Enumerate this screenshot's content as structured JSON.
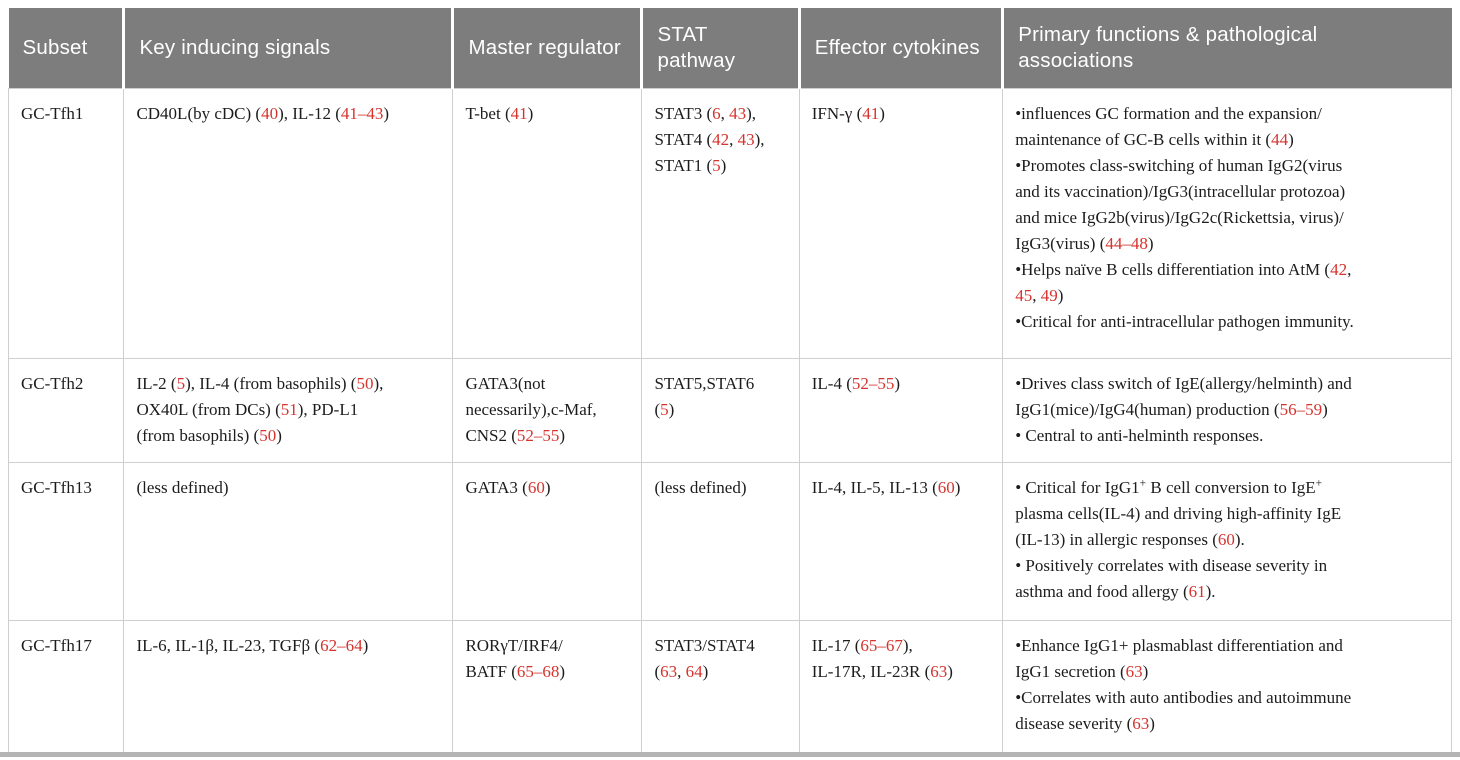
{
  "colors": {
    "citation_red": "#d5332e",
    "header_bg": "#7d7d7d",
    "border_gray": "#cfcfcf"
  },
  "table": {
    "columns": [
      "Subset",
      "Key inducing signals",
      "Master regulator",
      "STAT pathway",
      "Effector cytokines",
      "Primary functions & pathological associations"
    ],
    "column_keys": [
      "subset",
      "key-inducing-signals",
      "master-regulator",
      "stat-pathway",
      "effector-cytokines",
      "primary-functions"
    ],
    "rows": [
      {
        "cells": [
          [
            [
              "GC-Tfh1"
            ]
          ],
          [
            [
              "CD40L(by cDC) (",
              {
                "t": "40",
                "red": true
              },
              "), IL-12 (",
              {
                "t": "41–43",
                "red": true
              },
              ")"
            ]
          ],
          [
            [
              "T-bet (",
              {
                "t": "41",
                "red": true
              },
              ")"
            ]
          ],
          [
            [
              "STAT3 (",
              {
                "t": "6",
                "red": true
              },
              ", ",
              {
                "t": "43",
                "red": true
              },
              "),"
            ],
            [
              "STAT4 (",
              {
                "t": "42",
                "red": true
              },
              ", ",
              {
                "t": "43",
                "red": true
              },
              "),"
            ],
            [
              "STAT1 (",
              {
                "t": "5",
                "red": true
              },
              ")"
            ]
          ],
          [
            [
              "IFN-γ (",
              {
                "t": "41",
                "red": true
              },
              ")"
            ]
          ],
          [
            [
              "•influences GC formation and the expansion/"
            ],
            [
              "maintenance of GC-B cells within it (",
              {
                "t": "44",
                "red": true
              },
              ")"
            ],
            [
              "•Promotes class-switching of human IgG2(virus"
            ],
            [
              "and its vaccination)/IgG3(intracellular protozoa)"
            ],
            [
              "and mice IgG2b(virus)/IgG2c(Rickettsia, virus)/"
            ],
            [
              "IgG3(virus) (",
              {
                "t": "44–48",
                "red": true
              },
              ")"
            ],
            [
              "•Helps naïve B cells differentiation into AtM (",
              {
                "t": "42",
                "red": true
              },
              ","
            ],
            [
              {
                "t": "45",
                "red": true
              },
              ", ",
              {
                "t": "49",
                "red": true
              },
              ")"
            ],
            [
              "•Critical for anti-intracellular pathogen immunity."
            ]
          ]
        ]
      },
      {
        "cells": [
          [
            [
              "GC-Tfh2"
            ]
          ],
          [
            [
              "IL-2 (",
              {
                "t": "5",
                "red": true
              },
              "), IL-4 (from basophils) (",
              {
                "t": "50",
                "red": true
              },
              "),"
            ],
            [
              "OX40L (from DCs) (",
              {
                "t": "51",
                "red": true
              },
              "), PD-L1"
            ],
            [
              "(from basophils) (",
              {
                "t": "50",
                "red": true
              },
              ")"
            ]
          ],
          [
            [
              "GATA3(not"
            ],
            [
              "necessarily),c-Maf,"
            ],
            [
              "CNS2 (",
              {
                "t": "52–55",
                "red": true
              },
              ")"
            ]
          ],
          [
            [
              "STAT5,STAT6"
            ],
            [
              "(",
              {
                "t": "5",
                "red": true
              },
              ")"
            ]
          ],
          [
            [
              "IL-4 (",
              {
                "t": "52–55",
                "red": true
              },
              ")"
            ]
          ],
          [
            [
              "•Drives class switch of IgE(allergy/helminth) and"
            ],
            [
              "IgG1(mice)/IgG4(human) production (",
              {
                "t": "56–59",
                "red": true
              },
              ")"
            ],
            [
              "• Central to anti-helminth responses."
            ]
          ]
        ]
      },
      {
        "cells": [
          [
            [
              "GC-Tfh13"
            ]
          ],
          [
            [
              "(less defined)"
            ]
          ],
          [
            [
              "GATA3 (",
              {
                "t": "60",
                "red": true
              },
              ")"
            ]
          ],
          [
            [
              "(less defined)"
            ]
          ],
          [
            [
              "IL-4, IL-5, IL-13 (",
              {
                "t": "60",
                "red": true
              },
              ")"
            ]
          ],
          [
            [
              "• Critical for IgG1",
              {
                "t": "+",
                "sup": true
              },
              " B cell conversion to IgE",
              {
                "t": "+",
                "sup": true
              }
            ],
            [
              "plasma cells(IL-4) and driving high-affinity IgE"
            ],
            [
              "(IL-13) in allergic responses (",
              {
                "t": "60",
                "red": true
              },
              ")."
            ],
            [
              "• Positively correlates with disease severity in"
            ],
            [
              "asthma and food allergy (",
              {
                "t": "61",
                "red": true
              },
              ")."
            ]
          ]
        ]
      },
      {
        "cells": [
          [
            [
              "GC-Tfh17"
            ]
          ],
          [
            [
              "IL-6, IL-1β, IL-23, TGFβ (",
              {
                "t": "62–64",
                "red": true
              },
              ")"
            ]
          ],
          [
            [
              "RORγT/IRF4/"
            ],
            [
              "BATF (",
              {
                "t": "65–68",
                "red": true
              },
              ")"
            ]
          ],
          [
            [
              "STAT3/STAT4"
            ],
            [
              "(",
              {
                "t": "63",
                "red": true
              },
              ", ",
              {
                "t": "64",
                "red": true
              },
              ")"
            ]
          ],
          [
            [
              "IL-17 (",
              {
                "t": "65–67",
                "red": true
              },
              "),"
            ],
            [
              "IL-17R, IL-23R (",
              {
                "t": "63",
                "red": true
              },
              ")"
            ]
          ],
          [
            [
              "•Enhance IgG1+ plasmablast differentiation and"
            ],
            [
              "IgG1 secretion (",
              {
                "t": "63",
                "red": true
              },
              ")"
            ],
            [
              "•Correlates with auto antibodies and autoimmune"
            ],
            [
              "disease severity (",
              {
                "t": "63",
                "red": true
              },
              ")"
            ]
          ]
        ]
      }
    ]
  }
}
